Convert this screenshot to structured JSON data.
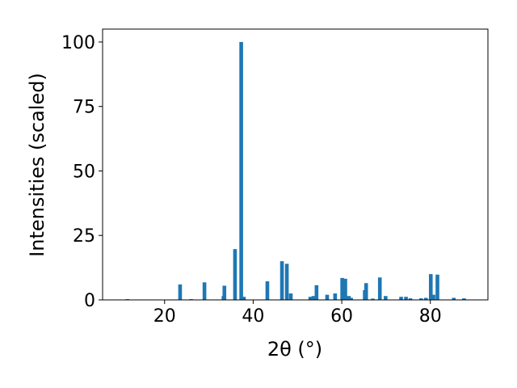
{
  "chart_data": {
    "type": "bar",
    "x": [
      11.6,
      23.5,
      26,
      29,
      33.3,
      33.5,
      35.9,
      37.3,
      37.9,
      43.2,
      46.5,
      47.6,
      48.5,
      52.9,
      53.6,
      54.3,
      56.7,
      58.5,
      60.1,
      60.8,
      61.6,
      62.1,
      65.2,
      65.5,
      67,
      68.6,
      69.9,
      73.4,
      74.5,
      75.5,
      77.9,
      79,
      80.1,
      80.7,
      81.6,
      85.3,
      87.6
    ],
    "values": [
      0.3,
      6,
      0.3,
      6.8,
      1.5,
      5.5,
      19.7,
      100,
      1.2,
      7.2,
      15,
      14,
      2.5,
      1.2,
      1.5,
      5.7,
      2,
      2.5,
      8.5,
      8.2,
      1.5,
      0.8,
      3.8,
      6.5,
      0.5,
      8.7,
      1.5,
      1.2,
      1.2,
      0.6,
      0.6,
      0.8,
      10,
      2,
      9.8,
      0.8,
      0.6
    ],
    "color": "#1f77b4",
    "xlabel": "2θ (°)",
    "ylabel": "Intensities (scaled)",
    "xlim": [
      6,
      93
    ],
    "ylim": [
      0,
      105
    ],
    "xticks": [
      20,
      40,
      60,
      80
    ],
    "yticks": [
      0,
      25,
      50,
      75,
      100
    ]
  }
}
